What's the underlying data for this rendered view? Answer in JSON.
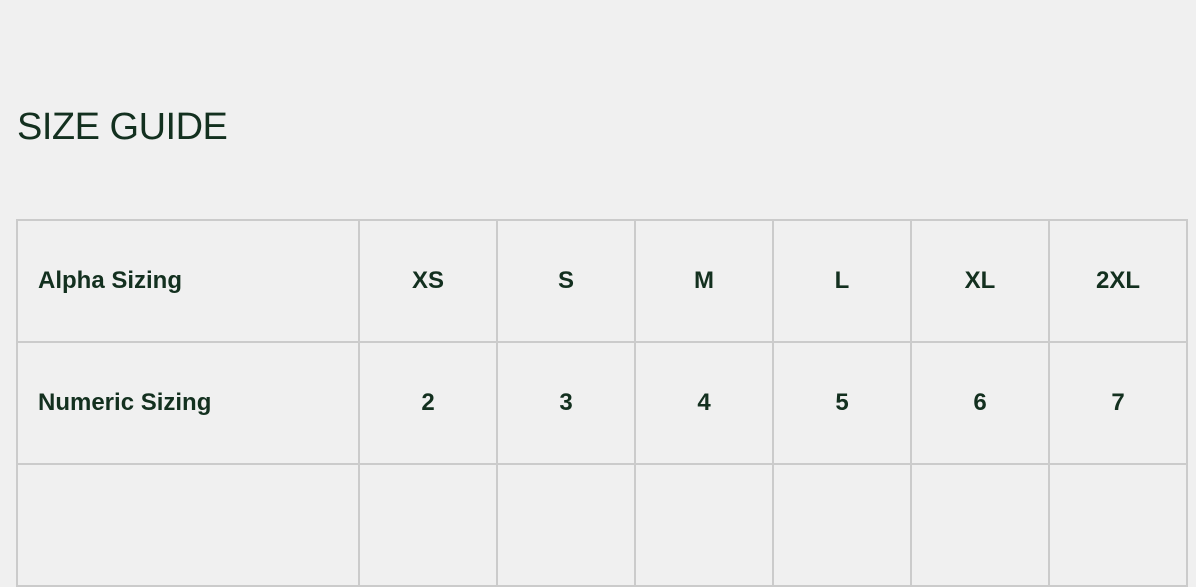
{
  "title": "SIZE GUIDE",
  "table": {
    "rows": [
      {
        "label": "Alpha Sizing",
        "values": [
          "XS",
          "S",
          "M",
          "L",
          "XL",
          "2XL"
        ]
      },
      {
        "label": "Numeric Sizing",
        "values": [
          "2",
          "3",
          "4",
          "5",
          "6",
          "7"
        ]
      },
      {
        "label": "",
        "values": [
          "",
          "",
          "",
          "",
          "",
          ""
        ]
      }
    ]
  },
  "colors": {
    "text": "#13301f",
    "border": "#cbcbcb",
    "background": "#f0f0f0"
  }
}
